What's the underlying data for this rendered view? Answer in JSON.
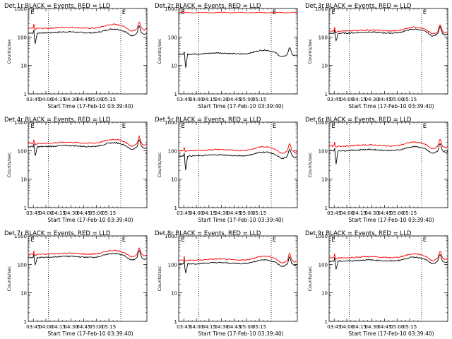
{
  "colors": {
    "black_series": "#000000",
    "red_series": "#ff0000",
    "background": "#ffffff"
  },
  "chart_data": [
    {
      "type": "line",
      "title": "Det 1r BLACK = Events, RED = LLD",
      "ylabel": "Counts/sec",
      "xlabel": "Start Time (17-Feb-10 03:39:40)",
      "yscale": "log",
      "ylim": [
        1,
        1000
      ],
      "y_tick_labels": [
        "1",
        "10",
        "100",
        "1000"
      ],
      "x_tick_labels": [
        "03:45",
        "04:00",
        "04:15",
        "04:30",
        "04:45",
        "05:00",
        "05:15"
      ],
      "flag_labels": [
        "E",
        "E"
      ],
      "series": [
        {
          "color": "#000000",
          "base": 138,
          "dip": 0.38
        },
        {
          "color": "#ff0000",
          "base": 200,
          "dip": 0.9
        }
      ]
    },
    {
      "type": "line",
      "title": "Det 2r BLACK = Events, RED = LLD",
      "ylabel": "Counts/sec",
      "xlabel": "Start Time (17-Feb-10 03:39:40)",
      "yscale": "log",
      "ylim": [
        1,
        1000
      ],
      "y_tick_labels": [
        "1",
        "10",
        "100",
        "1000"
      ],
      "x_tick_labels": [
        "03:45",
        "04:00",
        "04:15",
        "04:30",
        "04:45",
        "05:00",
        "05:15"
      ],
      "flag_labels": [
        "E",
        "E"
      ],
      "series": [
        {
          "color": "#000000",
          "base": 25,
          "dip": 0.28
        },
        {
          "color": "#ff0000",
          "base": 720,
          "dip": 1.0,
          "flat": true
        }
      ]
    },
    {
      "type": "line",
      "title": "Det 3r BLACK = Events, RED = LLD",
      "ylabel": "Counts/sec",
      "xlabel": "Start Time (17-Feb-10 03:39:40)",
      "yscale": "log",
      "ylim": [
        1,
        1000
      ],
      "y_tick_labels": [
        "1",
        "10",
        "100",
        "1000"
      ],
      "x_tick_labels": [
        "03:45",
        "04:00",
        "04:15",
        "04:30",
        "04:45",
        "05:00",
        "05:15"
      ],
      "flag_labels": [
        "E",
        "E"
      ],
      "series": [
        {
          "color": "#000000",
          "base": 135,
          "dip": 0.5
        },
        {
          "color": "#ff0000",
          "base": 160,
          "dip": 0.9
        }
      ]
    },
    {
      "type": "line",
      "title": "Det 4r BLACK = Events, RED = LLD",
      "ylabel": "Counts/sec",
      "xlabel": "Start Time (17-Feb-10 03:39:40)",
      "yscale": "log",
      "ylim": [
        1,
        1000
      ],
      "y_tick_labels": [
        "1",
        "10",
        "100",
        "1000"
      ],
      "x_tick_labels": [
        "03:45",
        "04:00",
        "04:15",
        "04:30",
        "04:45",
        "05:00",
        "05:15"
      ],
      "flag_labels": [
        "E",
        "E"
      ],
      "series": [
        {
          "color": "#000000",
          "base": 138,
          "dip": 0.42
        },
        {
          "color": "#ff0000",
          "base": 180,
          "dip": 0.9
        }
      ]
    },
    {
      "type": "line",
      "title": "Det 5r BLACK = Events, RED = LLD",
      "ylabel": "Counts/sec",
      "xlabel": "Start Time (17-Feb-10 03:39:40)",
      "yscale": "log",
      "ylim": [
        1,
        1000
      ],
      "y_tick_labels": [
        "1",
        "10",
        "100",
        "1000"
      ],
      "x_tick_labels": [
        "03:45",
        "04:00",
        "04:15",
        "04:30",
        "04:45",
        "05:00",
        "05:15"
      ],
      "flag_labels": [
        "E",
        "E"
      ],
      "series": [
        {
          "color": "#000000",
          "base": 65,
          "dip": 0.28
        },
        {
          "color": "#ff0000",
          "base": 100,
          "dip": 0.9
        }
      ]
    },
    {
      "type": "line",
      "title": "Det 6r BLACK = Events, RED = LLD",
      "ylabel": "Counts/sec",
      "xlabel": "Start Time (17-Feb-10 03:39:40)",
      "yscale": "log",
      "ylim": [
        1,
        1000
      ],
      "y_tick_labels": [
        "1",
        "10",
        "100",
        "1000"
      ],
      "x_tick_labels": [
        "03:45",
        "04:00",
        "04:15",
        "04:30",
        "04:45",
        "05:00",
        "05:15"
      ],
      "flag_labels": [
        "E",
        "E"
      ],
      "series": [
        {
          "color": "#000000",
          "base": 100,
          "dip": 0.3
        },
        {
          "color": "#ff0000",
          "base": 145,
          "dip": 0.9
        }
      ]
    },
    {
      "type": "line",
      "title": "Det 7r BLACK = Events, RED = LLD",
      "ylabel": "Counts/sec",
      "xlabel": "Start Time (17-Feb-10 03:39:40)",
      "yscale": "log",
      "ylim": [
        1,
        1000
      ],
      "y_tick_labels": [
        "1",
        "10",
        "100",
        "1000"
      ],
      "x_tick_labels": [
        "03:45",
        "04:00",
        "04:15",
        "04:30",
        "04:45",
        "05:00",
        "05:15"
      ],
      "flag_labels": [
        "E",
        "E"
      ],
      "series": [
        {
          "color": "#000000",
          "base": 175,
          "dip": 0.5
        },
        {
          "color": "#ff0000",
          "base": 225,
          "dip": 0.9
        }
      ]
    },
    {
      "type": "line",
      "title": "Det 8r BLACK = Events, RED = LLD",
      "ylabel": "Counts/sec",
      "xlabel": "Start Time (17-Feb-10 03:39:40)",
      "yscale": "log",
      "ylim": [
        1,
        1000
      ],
      "y_tick_labels": [
        "1",
        "10",
        "100",
        "1000"
      ],
      "x_tick_labels": [
        "03:45",
        "04:00",
        "04:15",
        "04:30",
        "04:45",
        "05:00",
        "05:15"
      ],
      "flag_labels": [
        "E",
        "E"
      ],
      "series": [
        {
          "color": "#000000",
          "base": 105,
          "dip": 0.42
        },
        {
          "color": "#ff0000",
          "base": 140,
          "dip": 0.9
        }
      ]
    },
    {
      "type": "line",
      "title": "Det 9r BLACK = Events, RED = LLD",
      "ylabel": "Counts/sec",
      "xlabel": "Start Time (17-Feb-10 03:39:40)",
      "yscale": "log",
      "ylim": [
        1,
        1000
      ],
      "y_tick_labels": [
        "1",
        "10",
        "100",
        "1000"
      ],
      "x_tick_labels": [
        "03:45",
        "04:00",
        "04:15",
        "04:30",
        "04:45",
        "05:00",
        "05:15"
      ],
      "flag_labels": [
        "E",
        "E"
      ],
      "series": [
        {
          "color": "#000000",
          "base": 130,
          "dip": 0.5
        },
        {
          "color": "#ff0000",
          "base": 170,
          "dip": 0.9
        }
      ]
    }
  ]
}
